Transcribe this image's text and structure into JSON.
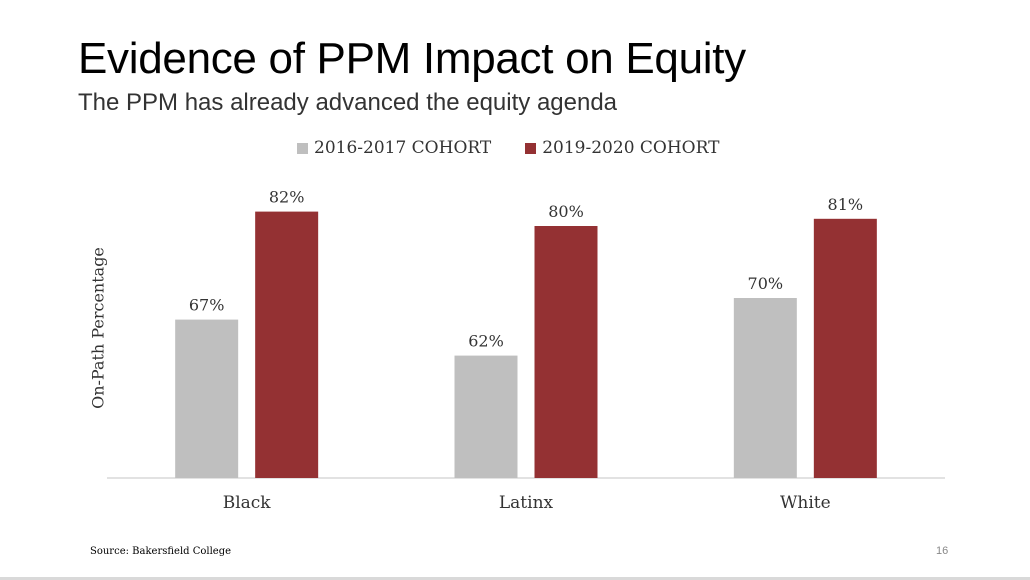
{
  "slide": {
    "title": "Evidence of PPM Impact on Equity",
    "subtitle": "The PPM has already advanced the equity agenda",
    "source": "Source: Bakersfield College",
    "page_number": "16"
  },
  "chart_data": {
    "type": "bar",
    "categories": [
      "Black",
      "Latinx",
      "White"
    ],
    "series": [
      {
        "name": "2016-2017 COHORT",
        "values": [
          67,
          62,
          70
        ],
        "labels": [
          "67%",
          "62%",
          "70%"
        ],
        "color": "#bfbfbf"
      },
      {
        "name": "2019-2020 COHORT",
        "values": [
          82,
          80,
          81
        ],
        "labels": [
          "82%",
          "80%",
          "81%"
        ],
        "color": "#943133"
      }
    ],
    "title": "",
    "xlabel": "",
    "ylabel": "On-Path Percentage",
    "ylim": [
      45,
      85
    ],
    "grid": false,
    "legend": "top-center",
    "axis_color": "#d9d9d9"
  }
}
